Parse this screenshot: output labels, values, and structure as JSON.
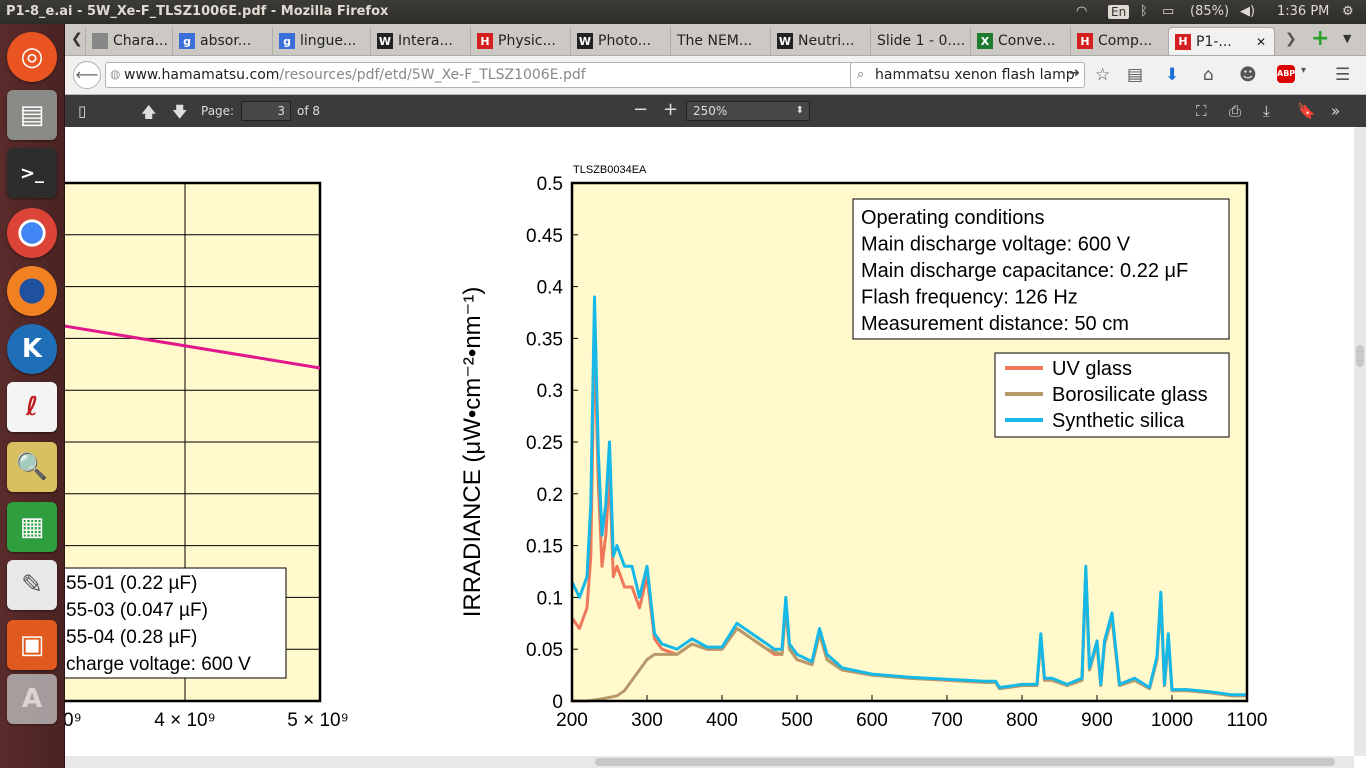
{
  "topbar": {
    "window_title": "P1-8_e.ai - 5W_Xe-F_TLSZ1006E.pdf - Mozilla Firefox",
    "keyboard": "En",
    "battery": "(85%)",
    "time": "1:36 PM"
  },
  "tabs": [
    {
      "label": "Chara...",
      "icon": "page-icon"
    },
    {
      "label": "absor...",
      "icon": "google-icon"
    },
    {
      "label": "lingue...",
      "icon": "google-icon"
    },
    {
      "label": "Intera...",
      "icon": "wikipedia-icon"
    },
    {
      "label": "Physic...",
      "icon": "hamamatsu-icon"
    },
    {
      "label": "Photo...",
      "icon": "wikipedia-icon"
    },
    {
      "label": "The NEM...",
      "icon": "none"
    },
    {
      "label": "Neutri...",
      "icon": "wikipedia-icon"
    },
    {
      "label": "Slide 1 - 0....",
      "icon": "none"
    },
    {
      "label": "Conve...",
      "icon": "excel-icon"
    },
    {
      "label": "Comp...",
      "icon": "hamamatsu-icon"
    },
    {
      "label": "P1-...",
      "icon": "hamamatsu-icon",
      "active": true
    }
  ],
  "nav": {
    "url_host": "www.hamamatsu.com",
    "url_path": "/resources/pdf/etd/5W_Xe-F_TLSZ1006E.pdf",
    "search_value": "hammatsu xenon flash lamp"
  },
  "pdf": {
    "page_label": "Page:",
    "page": "3",
    "page_total": "of 8",
    "zoom": "250%"
  },
  "left_chart": {
    "legend": [
      "55-01 (0.22 µF)",
      "55-03 (0.047 µF)",
      "55-04 (0.28 µF)",
      "charge voltage: 600 V"
    ],
    "xticks": [
      "0⁹",
      "4 × 10⁹",
      "5 × 10⁹"
    ],
    "line_color": "#e0188c"
  },
  "chart_data": {
    "type": "line",
    "figure_code": "TLSZB0034EA",
    "ylabel": "IRRADIANCE   (μW•cm⁻²•nm⁻¹)",
    "xlim": [
      200,
      1100
    ],
    "ylim": [
      0,
      0.5
    ],
    "xticks": [
      "200",
      "300",
      "400",
      "500",
      "600",
      "700",
      "800",
      "900",
      "1000",
      "1100"
    ],
    "yticks": [
      "0",
      "0.05",
      "0.1",
      "0.15",
      "0.2",
      "0.25",
      "0.3",
      "0.35",
      "0.4",
      "0.45",
      "0.5"
    ],
    "conditions": [
      "Operating conditions",
      "Main discharge voltage: 600 V",
      "Main discharge capacitance: 0.22 μF",
      "Flash frequency: 126 Hz",
      "Measurement distance: 50 cm"
    ],
    "series": [
      {
        "name": "UV glass",
        "color": "#f0785a",
        "x": [
          200,
          210,
          220,
          225,
          230,
          235,
          240,
          245,
          250,
          255,
          260,
          270,
          280,
          290,
          300,
          310,
          320,
          340,
          360,
          380,
          400,
          420,
          440,
          460,
          470,
          480,
          485,
          490,
          500,
          520,
          530,
          540,
          560,
          600,
          650,
          700,
          750,
          765,
          770,
          800,
          820,
          825,
          830,
          840,
          860,
          880,
          885,
          890,
          900,
          905,
          910,
          920,
          930,
          950,
          970,
          980,
          985,
          990,
          995,
          1000,
          1020,
          1050,
          1080,
          1100
        ],
        "y": [
          0.08,
          0.07,
          0.09,
          0.14,
          0.36,
          0.21,
          0.13,
          0.16,
          0.22,
          0.12,
          0.13,
          0.11,
          0.11,
          0.09,
          0.12,
          0.06,
          0.05,
          0.045,
          0.055,
          0.05,
          0.05,
          0.07,
          0.06,
          0.05,
          0.045,
          0.045,
          0.09,
          0.05,
          0.04,
          0.035,
          0.065,
          0.04,
          0.03,
          0.025,
          0.022,
          0.02,
          0.018,
          0.018,
          0.012,
          0.015,
          0.015,
          0.06,
          0.02,
          0.02,
          0.015,
          0.02,
          0.125,
          0.03,
          0.055,
          0.015,
          0.055,
          0.08,
          0.015,
          0.02,
          0.012,
          0.04,
          0.1,
          0.015,
          0.06,
          0.01,
          0.01,
          0.008,
          0.005,
          0.005
        ]
      },
      {
        "name": "Borosilicate glass",
        "color": "#b89a6a",
        "x": [
          200,
          220,
          240,
          260,
          270,
          280,
          290,
          300,
          310,
          320,
          340,
          360,
          380,
          400,
          420,
          440,
          460,
          480,
          485,
          490,
          500,
          520,
          530,
          540,
          560,
          600,
          650,
          700,
          750,
          765,
          770,
          800,
          820,
          825,
          830,
          840,
          860,
          880,
          885,
          890,
          900,
          905,
          910,
          920,
          930,
          950,
          970,
          980,
          985,
          990,
          995,
          1000,
          1020,
          1050,
          1080,
          1100
        ],
        "y": [
          0,
          0,
          0.002,
          0.005,
          0.01,
          0.02,
          0.03,
          0.04,
          0.045,
          0.045,
          0.045,
          0.055,
          0.05,
          0.05,
          0.07,
          0.06,
          0.05,
          0.045,
          0.09,
          0.05,
          0.04,
          0.035,
          0.065,
          0.04,
          0.03,
          0.025,
          0.022,
          0.02,
          0.018,
          0.018,
          0.012,
          0.015,
          0.015,
          0.06,
          0.02,
          0.02,
          0.015,
          0.02,
          0.125,
          0.03,
          0.055,
          0.015,
          0.055,
          0.08,
          0.015,
          0.02,
          0.012,
          0.04,
          0.1,
          0.015,
          0.06,
          0.01,
          0.01,
          0.008,
          0.005,
          0.005
        ]
      },
      {
        "name": "Synthetic silica",
        "color": "#15b8e6",
        "x": [
          200,
          210,
          220,
          225,
          230,
          235,
          240,
          245,
          250,
          255,
          260,
          270,
          280,
          290,
          300,
          310,
          320,
          340,
          360,
          380,
          400,
          420,
          440,
          460,
          470,
          480,
          485,
          490,
          500,
          520,
          530,
          540,
          560,
          600,
          650,
          700,
          750,
          765,
          770,
          800,
          820,
          825,
          830,
          840,
          860,
          880,
          885,
          890,
          900,
          905,
          910,
          920,
          930,
          950,
          970,
          980,
          985,
          990,
          995,
          1000,
          1020,
          1050,
          1080,
          1100
        ],
        "y": [
          0.115,
          0.1,
          0.12,
          0.19,
          0.39,
          0.24,
          0.16,
          0.19,
          0.25,
          0.14,
          0.15,
          0.13,
          0.13,
          0.1,
          0.13,
          0.065,
          0.055,
          0.05,
          0.06,
          0.052,
          0.052,
          0.075,
          0.065,
          0.055,
          0.05,
          0.05,
          0.1,
          0.055,
          0.045,
          0.038,
          0.07,
          0.045,
          0.032,
          0.026,
          0.023,
          0.021,
          0.019,
          0.019,
          0.013,
          0.016,
          0.016,
          0.065,
          0.022,
          0.022,
          0.016,
          0.022,
          0.13,
          0.032,
          0.058,
          0.016,
          0.058,
          0.085,
          0.016,
          0.022,
          0.013,
          0.043,
          0.105,
          0.016,
          0.065,
          0.011,
          0.011,
          0.009,
          0.006,
          0.006
        ]
      }
    ]
  }
}
